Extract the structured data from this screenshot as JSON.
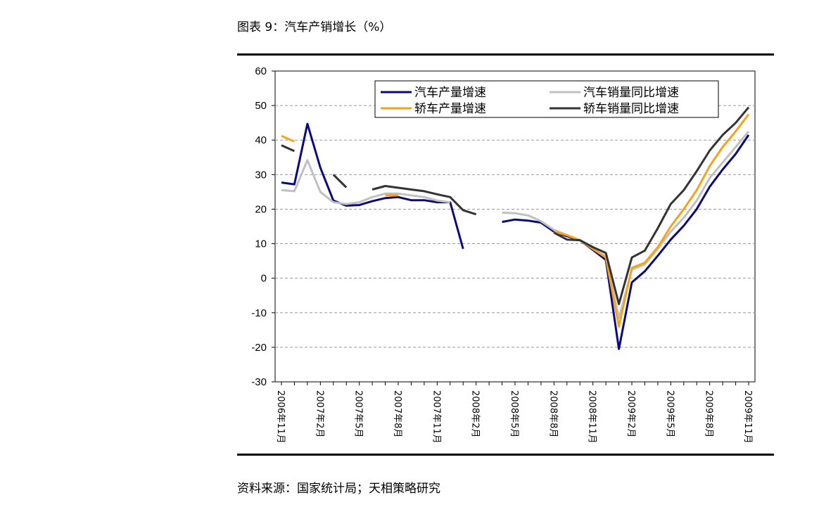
{
  "title": "图表 9：汽车产销增长（%）",
  "source": "资料来源：国家统计局；天相策略研究",
  "chart_data": {
    "type": "line",
    "ylim": [
      -30,
      60
    ],
    "yticks": [
      60,
      50,
      40,
      30,
      20,
      10,
      0,
      -10,
      -20,
      -30
    ],
    "x_start_index": 0,
    "x_count": 37,
    "xtick_labels": [
      "2006年11月",
      "2007年2月",
      "2007年5月",
      "2007年8月",
      "2007年11月",
      "2008年2月",
      "2008年5月",
      "2008年8月",
      "2008年11月",
      "2009年2月",
      "2009年5月",
      "2009年8月",
      "2009年11月"
    ],
    "xtick_every": 3,
    "grid": true,
    "legend_position": "top-center",
    "series": [
      {
        "name": "汽车产量增速",
        "color": "#0a0a7a",
        "values": [
          27.7,
          27.2,
          44.7,
          32,
          22.5,
          21,
          21.2,
          22.3,
          23.2,
          23.5,
          22.6,
          22.6,
          22,
          22,
          8.5,
          null,
          null,
          16.3,
          17,
          16.7,
          16.1,
          13.5,
          12.2,
          11,
          8.2,
          5.3,
          -20.5,
          -1.2,
          2,
          6.5,
          11.2,
          15.2,
          20,
          26.5,
          31.5,
          36,
          41.5
        ]
      },
      {
        "name": "汽车销量同比增速",
        "color": "#c0c0c0",
        "values": [
          25.5,
          25.2,
          34.2,
          25,
          22,
          21.5,
          22,
          23.5,
          24.5,
          24.5,
          24,
          23.5,
          22.5,
          22,
          null,
          null,
          null,
          19,
          18.8,
          18.2,
          16.5,
          14,
          12.5,
          11,
          8.5,
          6.3,
          -11.5,
          2.5,
          4,
          8.5,
          13.5,
          17.5,
          22.5,
          29,
          33.5,
          38,
          42.5
        ]
      },
      {
        "name": "轿车产量增速",
        "color": "#f5a31a",
        "values": [
          41.2,
          39.6,
          null,
          null,
          null,
          null,
          null,
          null,
          24,
          24,
          null,
          null,
          null,
          null,
          null,
          null,
          null,
          null,
          null,
          null,
          null,
          13.5,
          12.5,
          11,
          8.5,
          6,
          -14,
          3,
          4.5,
          9,
          15,
          20,
          25.5,
          32.5,
          38,
          42.5,
          47.5
        ]
      },
      {
        "name": "轿车销量同比增速",
        "color": "#333333",
        "values": [
          38.5,
          36.8,
          null,
          null,
          30,
          26.3,
          null,
          25.7,
          26.7,
          26.2,
          25.7,
          25.2,
          24.3,
          23.5,
          19.7,
          18.5,
          null,
          null,
          null,
          null,
          null,
          13.2,
          11.2,
          11,
          9,
          7.3,
          -7.5,
          6,
          8,
          14.5,
          21.5,
          25.5,
          31,
          37,
          41.5,
          45,
          49.5
        ]
      }
    ]
  }
}
